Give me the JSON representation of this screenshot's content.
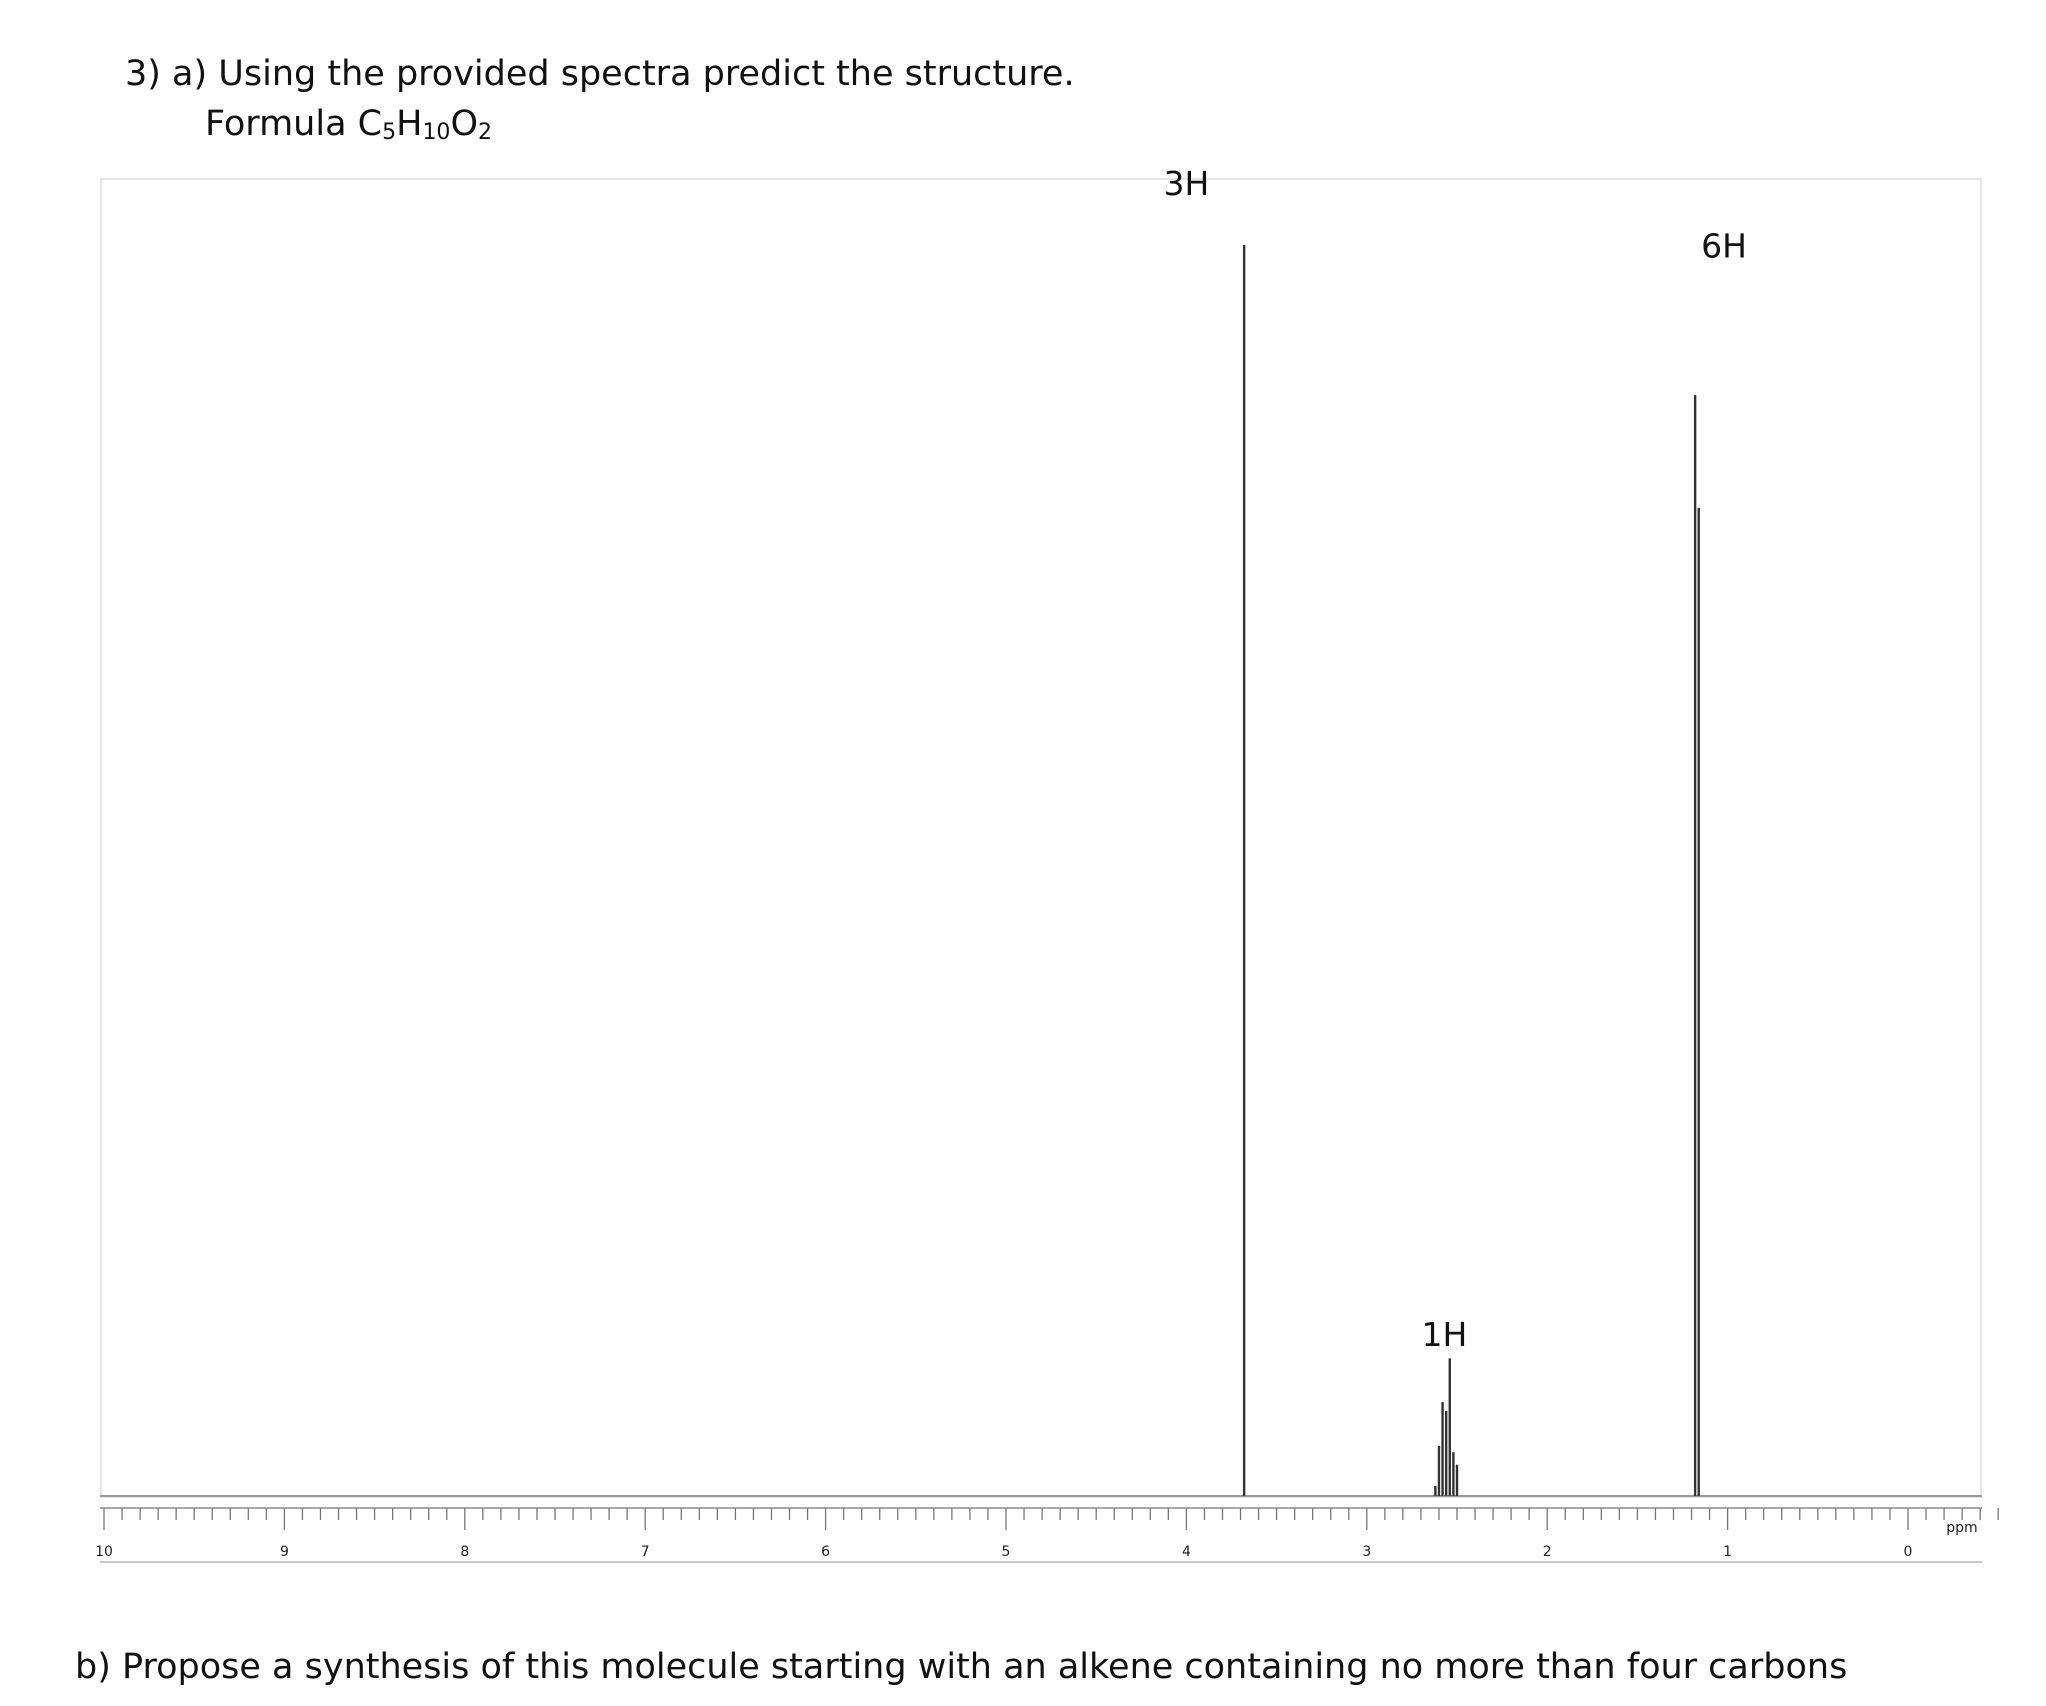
{
  "question": {
    "part_a": "3)  a) Using the provided spectra predict the structure.",
    "formula_label": "Formula ",
    "formula_parts": [
      {
        "text": "C",
        "sub": false
      },
      {
        "text": "5",
        "sub": true
      },
      {
        "text": "H",
        "sub": false
      },
      {
        "text": "10",
        "sub": true
      },
      {
        "text": "O",
        "sub": false
      },
      {
        "text": "2",
        "sub": true
      }
    ],
    "part_b": "b) Propose a synthesis of this molecule starting with an alkene containing no more than four carbons"
  },
  "chart_data": {
    "type": "line",
    "title": "",
    "xlabel": "ppm",
    "ylabel": "",
    "x_reversed": true,
    "xlim": [
      10,
      -0.5
    ],
    "ylim": [
      0,
      1
    ],
    "x_ticks": [
      10,
      9,
      8,
      7,
      6,
      5,
      4,
      3,
      2,
      1,
      0
    ],
    "x_tick_labels": [
      "10",
      "9",
      "8",
      "7",
      "6",
      "5",
      "4",
      "3",
      "2",
      "1",
      "0"
    ],
    "minor_tick_step": 0.1,
    "grid": false,
    "peaks": [
      {
        "ppm": 3.68,
        "intensity": 1.0
      },
      {
        "ppm": 2.6,
        "intensity": 0.04
      },
      {
        "ppm": 2.58,
        "intensity": 0.075
      },
      {
        "ppm": 2.56,
        "intensity": 0.068
      },
      {
        "ppm": 2.54,
        "intensity": 0.11
      },
      {
        "ppm": 2.52,
        "intensity": 0.035
      },
      {
        "ppm": 2.5,
        "intensity": 0.025
      },
      {
        "ppm": 2.62,
        "intensity": 0.008
      },
      {
        "ppm": 1.18,
        "intensity": 0.88
      },
      {
        "ppm": 1.16,
        "intensity": 0.79
      }
    ],
    "annotations": [
      {
        "text": "3H",
        "ppm": 4.0,
        "y": 1.04
      },
      {
        "text": "1H",
        "ppm": 2.57,
        "y": 0.12
      },
      {
        "text": "6H",
        "ppm": 1.02,
        "y": 0.99
      }
    ]
  }
}
